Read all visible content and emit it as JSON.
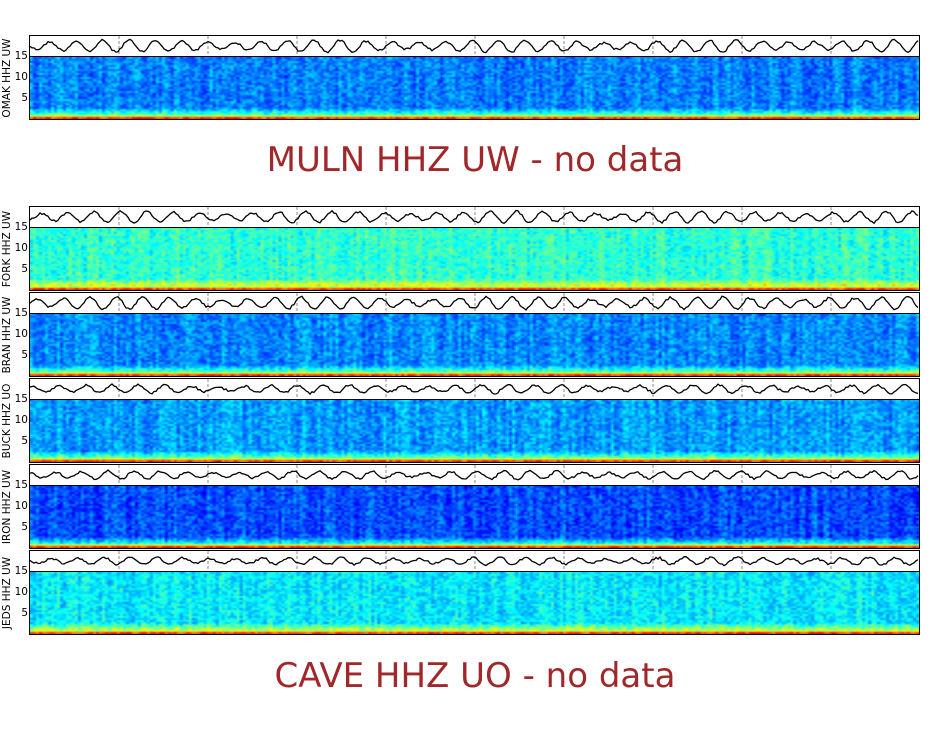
{
  "chart_data": {
    "type": "heatmap",
    "description_kind": "seismic waveform + spectrogram panels",
    "y_ticks": [
      "5",
      "10",
      "15"
    ],
    "ylim": [
      0,
      16
    ],
    "colormap": "jet",
    "waveform_color": "#000000",
    "rows": [
      {
        "kind": "panel",
        "label": "OMAK HHZ UW",
        "intensity": 0.25
      },
      {
        "kind": "nodata",
        "label": "MULN HHZ UW - no data"
      },
      {
        "kind": "panel",
        "label": "FORK HHZ UW",
        "intensity": 0.42
      },
      {
        "kind": "panel",
        "label": "BRAN HHZ UW",
        "intensity": 0.26
      },
      {
        "kind": "panel",
        "label": "BUCK HHZ UO",
        "intensity": 0.28
      },
      {
        "kind": "panel",
        "label": "IRON HHZ UW",
        "intensity": 0.2
      },
      {
        "kind": "panel",
        "label": "JEDS HHZ UW",
        "intensity": 0.36
      },
      {
        "kind": "nodata",
        "label": "CAVE HHZ UO - no data"
      }
    ]
  },
  "colors": {
    "nodata_text": "#a0282a"
  }
}
